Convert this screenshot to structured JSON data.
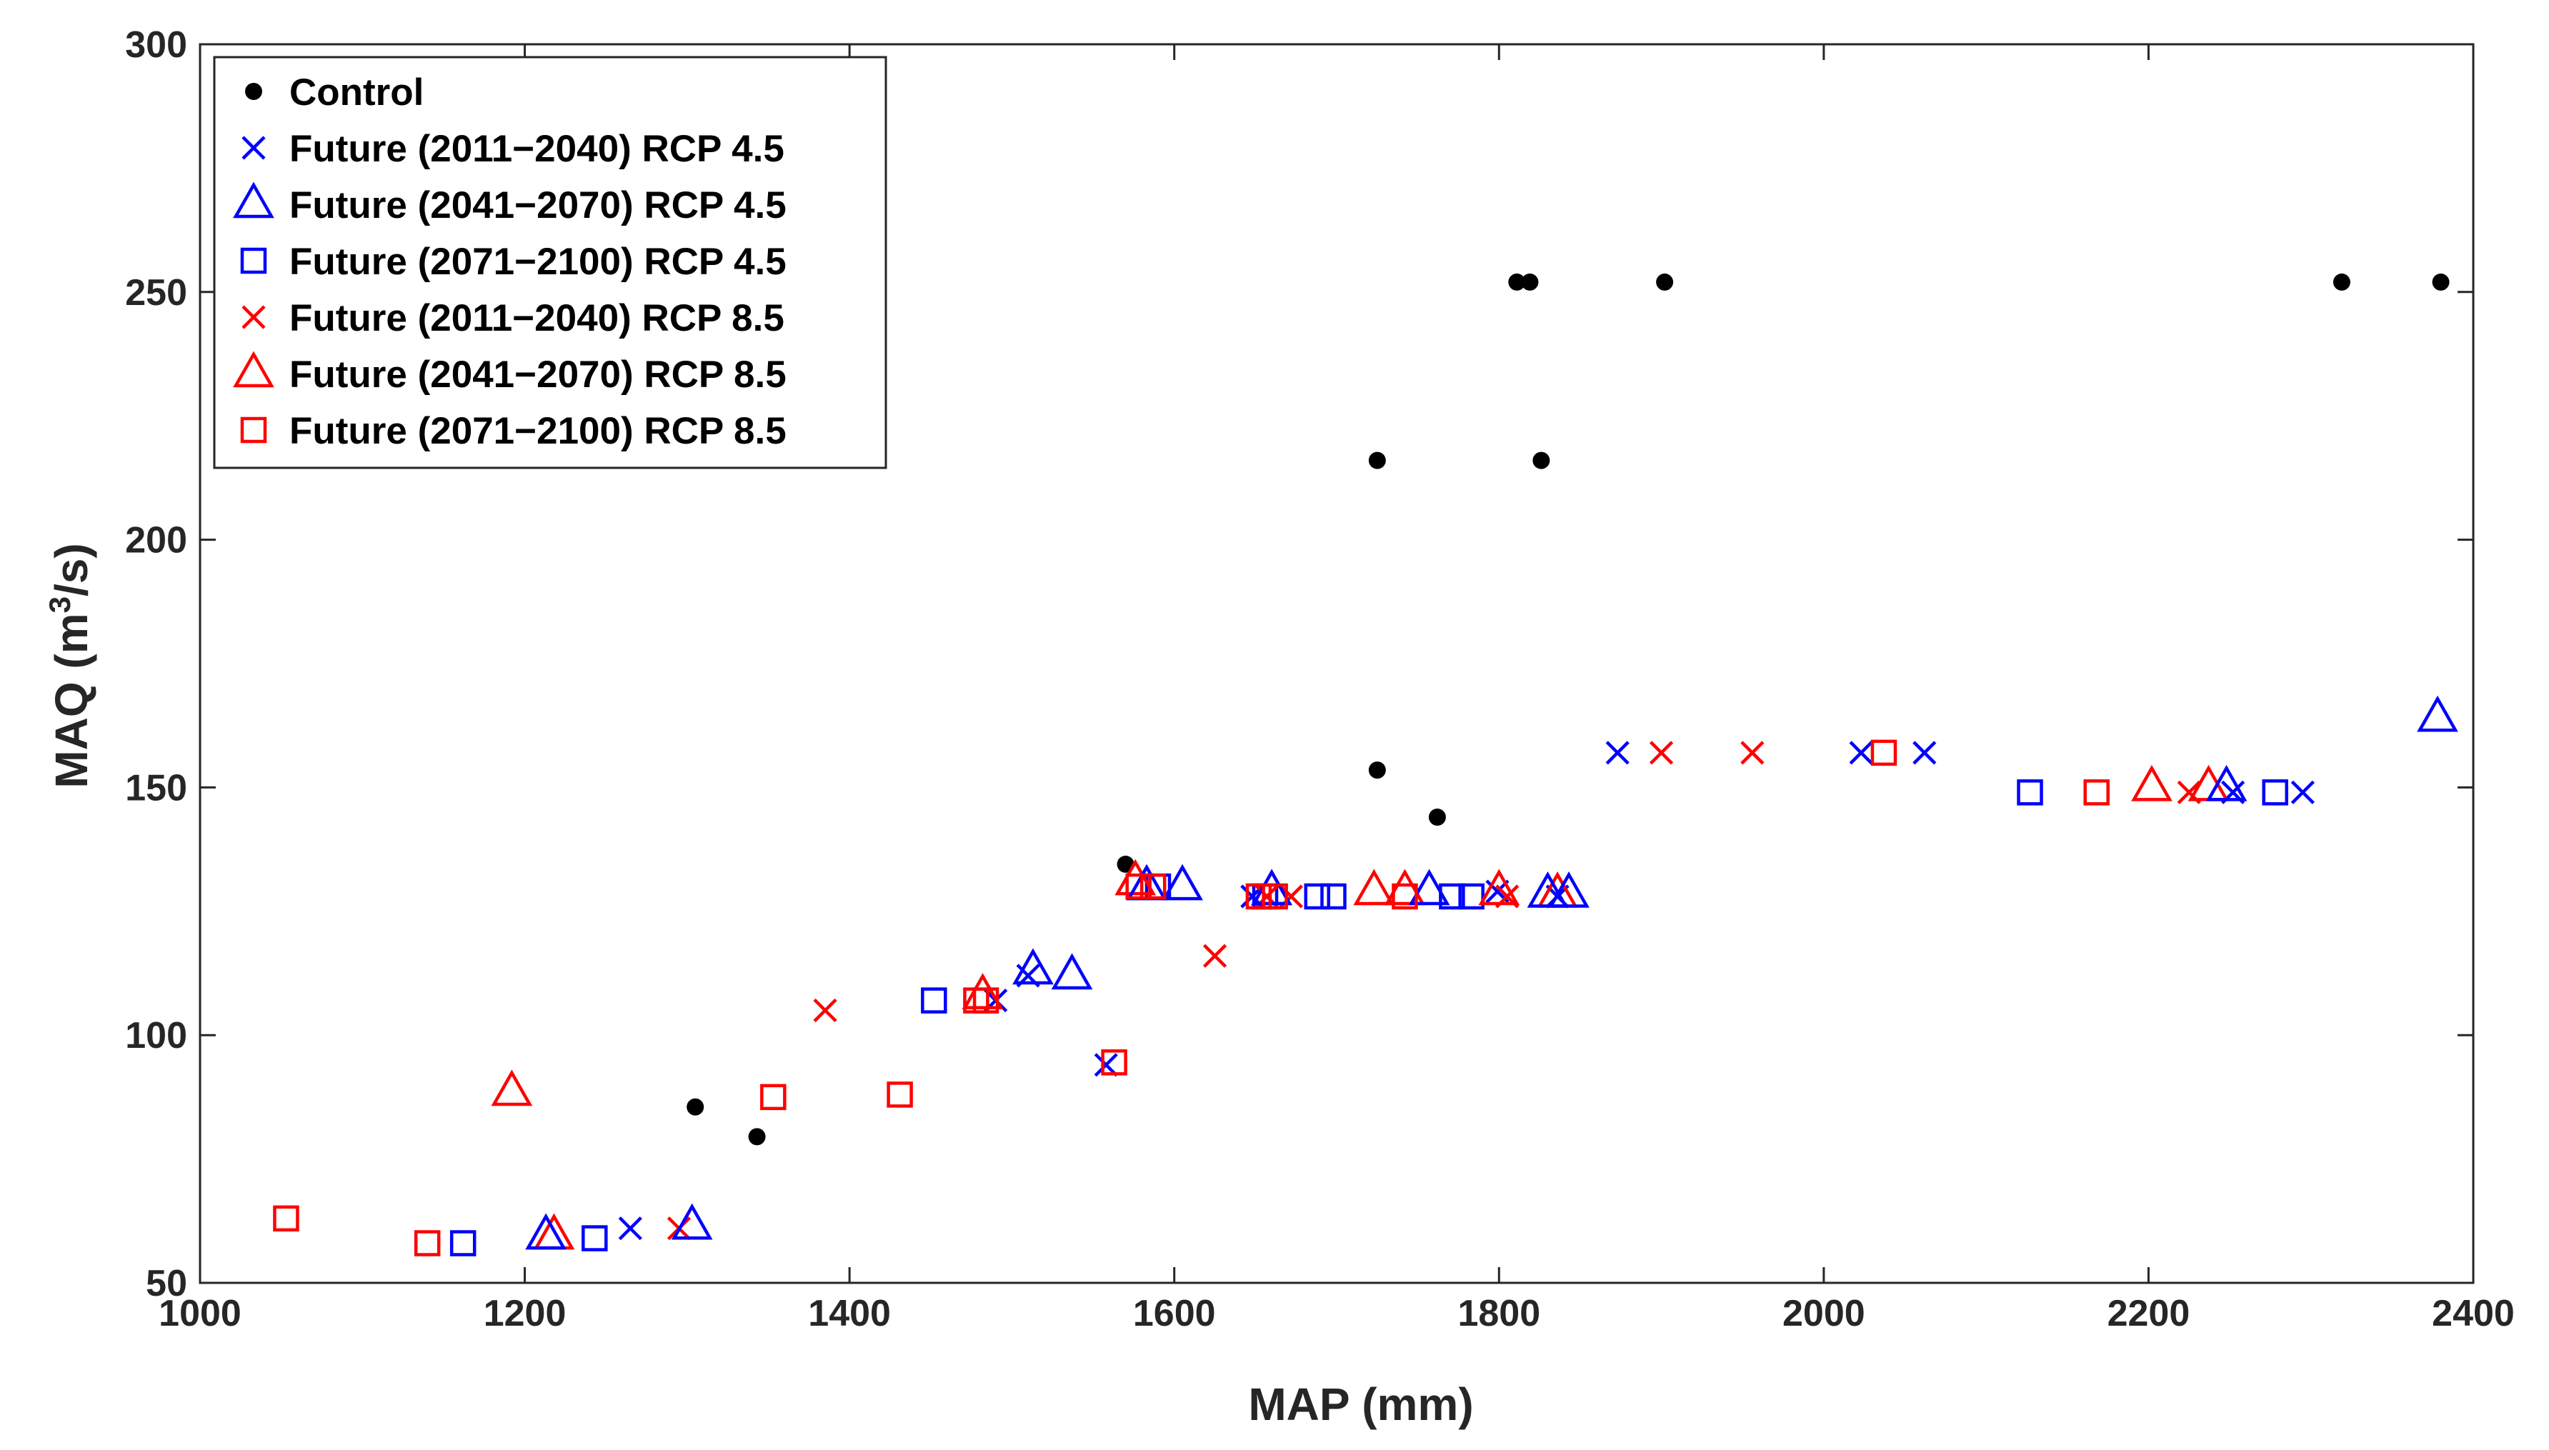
{
  "chart_data": {
    "type": "scatter",
    "title": "",
    "xlabel": "MAP (mm)",
    "ylabel_main": "MAQ (m",
    "ylabel_sup": "3",
    "ylabel_tail": "/s)",
    "xlim": [
      1000,
      2400
    ],
    "ylim": [
      50,
      300
    ],
    "xticks": [
      1000,
      1200,
      1400,
      1600,
      1800,
      2000,
      2200,
      2400
    ],
    "yticks": [
      50,
      100,
      150,
      200,
      250,
      300
    ],
    "legend_position": "top-left",
    "series": [
      {
        "name": "Control",
        "color": "#000000",
        "marker": "dot",
        "points": [
          [
            1305,
            85.5
          ],
          [
            1343,
            79.5
          ],
          [
            1570,
            134.5
          ],
          [
            1725,
            153.5
          ],
          [
            1762,
            144
          ],
          [
            1725,
            216
          ],
          [
            1826,
            216
          ],
          [
            1811,
            252
          ],
          [
            1819,
            252
          ],
          [
            1902,
            252
          ],
          [
            2319,
            252
          ],
          [
            2380,
            252
          ]
        ]
      },
      {
        "name": "Future (2011−2040) RCP 4.5",
        "color": "#0000ff",
        "marker": "x",
        "points": [
          [
            1265,
            61
          ],
          [
            1490,
            107
          ],
          [
            1510,
            112
          ],
          [
            1558,
            94
          ],
          [
            1648,
            128
          ],
          [
            1799,
            129
          ],
          [
            1836,
            128
          ],
          [
            1873,
            157
          ],
          [
            2023,
            157
          ],
          [
            2062,
            157
          ],
          [
            2252,
            149
          ],
          [
            2295,
            149
          ]
        ]
      },
      {
        "name": "Future (2041−2070) RCP 4.5",
        "color": "#0000ff",
        "marker": "triangle",
        "points": [
          [
            1213,
            59.5
          ],
          [
            1303,
            61.5
          ],
          [
            1513,
            113
          ],
          [
            1537,
            112
          ],
          [
            1583,
            130
          ],
          [
            1605,
            130
          ],
          [
            1660,
            129
          ],
          [
            1757,
            129
          ],
          [
            1830,
            128.5
          ],
          [
            1843,
            128.5
          ],
          [
            2248,
            150
          ],
          [
            2378,
            164
          ]
        ]
      },
      {
        "name": "Future (2071−2100) RCP 4.5",
        "color": "#0000ff",
        "marker": "square",
        "points": [
          [
            1162,
            58
          ],
          [
            1243,
            59
          ],
          [
            1452,
            107
          ],
          [
            1590,
            130
          ],
          [
            1656,
            128
          ],
          [
            1688,
            128
          ],
          [
            1698,
            128
          ],
          [
            1771,
            128
          ],
          [
            1783,
            128
          ],
          [
            2127,
            149
          ],
          [
            2278,
            149
          ]
        ]
      },
      {
        "name": "Future (2011−2040) RCP 8.5",
        "color": "#ff0000",
        "marker": "x",
        "points": [
          [
            1295,
            61
          ],
          [
            1385,
            105
          ],
          [
            1625,
            116
          ],
          [
            1657,
            128
          ],
          [
            1672,
            128
          ],
          [
            1805,
            128
          ],
          [
            1900,
            157
          ],
          [
            1956,
            157
          ],
          [
            2225,
            149
          ]
        ]
      },
      {
        "name": "Future (2041−2070) RCP 8.5",
        "color": "#ff0000",
        "marker": "triangle",
        "points": [
          [
            1192,
            88.5
          ],
          [
            1218,
            59.5
          ],
          [
            1482,
            108
          ],
          [
            1576,
            131
          ],
          [
            1660,
            129
          ],
          [
            1723,
            129
          ],
          [
            1742,
            129
          ],
          [
            1800,
            129
          ],
          [
            1836,
            128.5
          ],
          [
            2202,
            150
          ],
          [
            2237,
            150
          ]
        ]
      },
      {
        "name": "Future (2071−2100) RCP 8.5",
        "color": "#ff0000",
        "marker": "square",
        "points": [
          [
            1053,
            63
          ],
          [
            1140,
            58
          ],
          [
            1353,
            87.5
          ],
          [
            1431,
            88
          ],
          [
            1478,
            107
          ],
          [
            1484,
            107
          ],
          [
            1563,
            94.5
          ],
          [
            1578,
            130
          ],
          [
            1587,
            130
          ],
          [
            1652,
            128
          ],
          [
            1662,
            128
          ],
          [
            1742,
            128
          ],
          [
            2037,
            157
          ],
          [
            2168,
            149
          ]
        ]
      }
    ]
  }
}
